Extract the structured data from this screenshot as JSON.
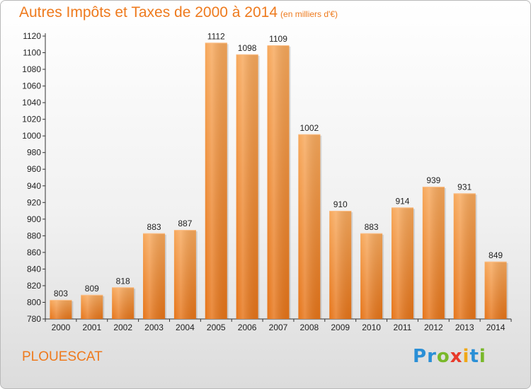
{
  "header": {
    "title": "Autres Impôts et Taxes de 2000 à 2014",
    "unit": "(en milliers d'€)"
  },
  "footer": {
    "city": "PLOUESCAT",
    "logo": [
      "P",
      "r",
      "o",
      "x",
      "i",
      "t",
      "i"
    ]
  },
  "colors": {
    "accent": "#ee7a1d",
    "bar_top": "#f7a85b",
    "bar_bottom": "#e67418"
  },
  "chart_data": {
    "type": "bar",
    "title": "Autres Impôts et Taxes de 2000 à 2014",
    "subtitle": "(en milliers d'€)",
    "xlabel": "",
    "ylabel": "",
    "categories": [
      "2000",
      "2001",
      "2002",
      "2003",
      "2004",
      "2005",
      "2006",
      "2007",
      "2008",
      "2009",
      "2010",
      "2011",
      "2012",
      "2013",
      "2014"
    ],
    "values": [
      803,
      809,
      818,
      883,
      887,
      1112,
      1098,
      1109,
      1002,
      910,
      883,
      914,
      939,
      931,
      849
    ],
    "ylim": [
      780,
      1120
    ],
    "yticks": [
      780,
      800,
      820,
      840,
      860,
      880,
      900,
      920,
      940,
      960,
      980,
      1000,
      1020,
      1040,
      1060,
      1080,
      1100,
      1120
    ],
    "grid": false,
    "data_labels": true
  }
}
